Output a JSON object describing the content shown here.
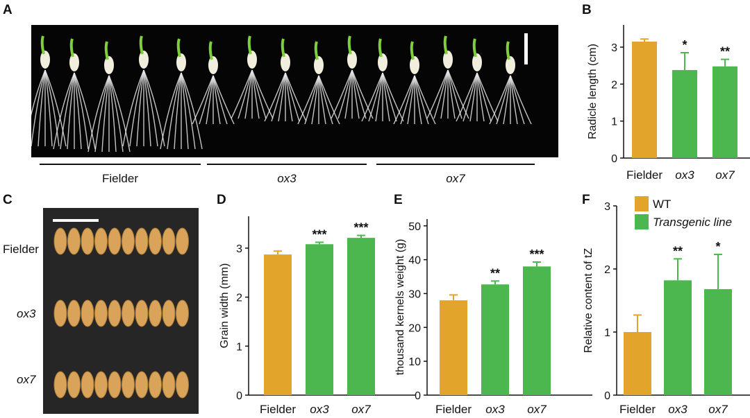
{
  "panels": {
    "a": {
      "letter": "A",
      "groups": [
        "Fielder",
        "ox3",
        "ox7"
      ]
    },
    "b": {
      "letter": "B"
    },
    "c": {
      "letter": "C",
      "rows": [
        "Fielder",
        "ox3",
        "ox7"
      ]
    },
    "d": {
      "letter": "D"
    },
    "e": {
      "letter": "E"
    },
    "f": {
      "letter": "F"
    }
  },
  "colors": {
    "wt": "#E2A42B",
    "transgenic": "#4CB74E",
    "axis": "#111111",
    "photo_bg": "#050505",
    "seed": "#D9A45A"
  },
  "chart_data": [
    {
      "id": "B",
      "type": "bar",
      "ylabel": "Radicle length (cm)",
      "categories": [
        "Fielder",
        "ox3",
        "ox7"
      ],
      "italic_categories": [
        false,
        true,
        true
      ],
      "values": [
        3.15,
        2.38,
        2.48
      ],
      "errors": [
        0.07,
        0.47,
        0.19
      ],
      "significance": [
        "",
        "*",
        "**"
      ],
      "ylim": [
        0,
        3.6
      ],
      "yticks": [
        0,
        1,
        2,
        3
      ]
    },
    {
      "id": "D",
      "type": "bar",
      "ylabel": "Grain width (mm)",
      "categories": [
        "Fielder",
        "ox3",
        "ox7"
      ],
      "italic_categories": [
        false,
        true,
        true
      ],
      "values": [
        2.87,
        3.08,
        3.21
      ],
      "errors": [
        0.07,
        0.04,
        0.05
      ],
      "significance": [
        "",
        "***",
        "***"
      ],
      "ylim": [
        0,
        3.65
      ],
      "yticks": [
        0,
        1,
        2,
        3
      ]
    },
    {
      "id": "E",
      "type": "bar",
      "ylabel": "thousand kernels weight (g)",
      "categories": [
        "Fielder",
        "ox3",
        "ox7"
      ],
      "italic_categories": [
        false,
        true,
        true
      ],
      "values": [
        28.0,
        32.7,
        38.0
      ],
      "errors": [
        1.6,
        1.0,
        1.3
      ],
      "significance": [
        "",
        "**",
        "***"
      ],
      "ylim": [
        0,
        52
      ],
      "yticks": [
        0,
        10,
        20,
        30,
        40,
        50
      ]
    },
    {
      "id": "F",
      "type": "bar",
      "ylabel": "Relative content of tZ",
      "categories": [
        "Fielder",
        "ox3",
        "ox7"
      ],
      "italic_categories": [
        false,
        true,
        true
      ],
      "values": [
        1.0,
        1.82,
        1.68
      ],
      "errors": [
        0.27,
        0.34,
        0.55
      ],
      "significance": [
        "",
        "**",
        "*"
      ],
      "ylim": [
        0,
        3
      ],
      "yticks": [
        0,
        1,
        2,
        3
      ],
      "legend": {
        "position": "top",
        "entries": [
          {
            "label": "WT",
            "italic": false
          },
          {
            "label": "Transgenic line",
            "italic": true
          }
        ]
      }
    }
  ]
}
